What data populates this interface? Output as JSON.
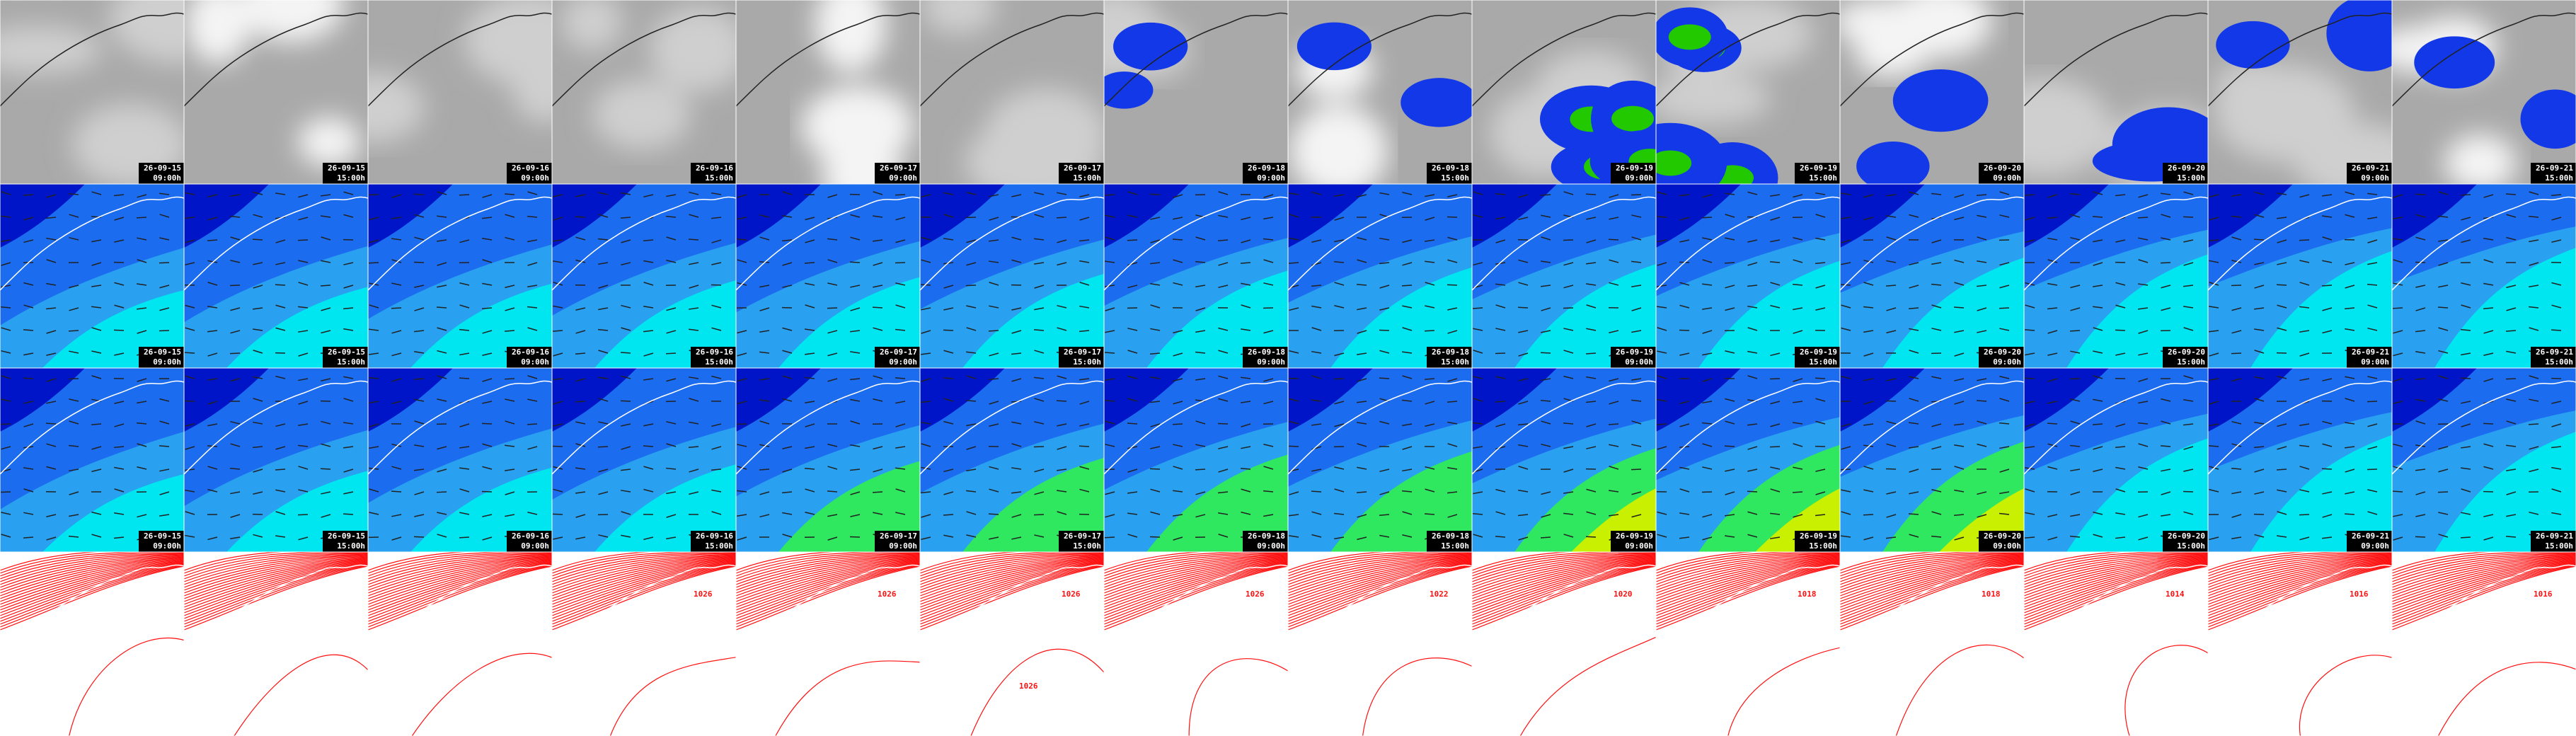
{
  "rows": [
    {
      "tiles": [
        {
          "date": "26-09-15",
          "time": "09:00h"
        },
        {
          "date": "26-09-15",
          "time": "15:00h"
        },
        {
          "date": "26-09-16",
          "time": "09:00h"
        },
        {
          "date": "26-09-16",
          "time": "15:00h"
        },
        {
          "date": "26-09-17",
          "time": "09:00h"
        },
        {
          "date": "26-09-17",
          "time": "15:00h"
        },
        {
          "date": "26-09-18",
          "time": "09:00h"
        },
        {
          "date": "26-09-18",
          "time": "15:00h"
        },
        {
          "date": "26-09-19",
          "time": "09:00h"
        },
        {
          "date": "26-09-19",
          "time": "15:00h"
        },
        {
          "date": "26-09-20",
          "time": "09:00h"
        },
        {
          "date": "26-09-20",
          "time": "15:00h"
        },
        {
          "date": "26-09-21",
          "time": "09:00h"
        },
        {
          "date": "26-09-21",
          "time": "15:00h"
        }
      ]
    },
    {
      "tiles": [
        {
          "date": "26-09-15",
          "time": "09:00h"
        },
        {
          "date": "26-09-15",
          "time": "15:00h"
        },
        {
          "date": "26-09-16",
          "time": "09:00h"
        },
        {
          "date": "26-09-16",
          "time": "15:00h"
        },
        {
          "date": "26-09-17",
          "time": "09:00h"
        },
        {
          "date": "26-09-17",
          "time": "15:00h"
        },
        {
          "date": "26-09-18",
          "time": "09:00h"
        },
        {
          "date": "26-09-18",
          "time": "15:00h"
        },
        {
          "date": "26-09-19",
          "time": "09:00h"
        },
        {
          "date": "26-09-19",
          "time": "15:00h"
        },
        {
          "date": "26-09-20",
          "time": "09:00h"
        },
        {
          "date": "26-09-20",
          "time": "15:00h"
        },
        {
          "date": "26-09-21",
          "time": "09:00h"
        },
        {
          "date": "26-09-21",
          "time": "15:00h"
        }
      ]
    },
    {
      "tiles": [
        {
          "date": "26-09-15",
          "time": "09:00h"
        },
        {
          "date": "26-09-15",
          "time": "15:00h"
        },
        {
          "date": "26-09-16",
          "time": "09:00h"
        },
        {
          "date": "26-09-16",
          "time": "15:00h"
        },
        {
          "date": "26-09-17",
          "time": "09:00h"
        },
        {
          "date": "26-09-17",
          "time": "15:00h"
        },
        {
          "date": "26-09-18",
          "time": "09:00h"
        },
        {
          "date": "26-09-18",
          "time": "15:00h"
        },
        {
          "date": "26-09-19",
          "time": "09:00h"
        },
        {
          "date": "26-09-19",
          "time": "15:00h"
        },
        {
          "date": "26-09-20",
          "time": "09:00h"
        },
        {
          "date": "26-09-20",
          "time": "15:00h"
        },
        {
          "date": "26-09-21",
          "time": "09:00h"
        },
        {
          "date": "26-09-21",
          "time": "15:00h"
        }
      ]
    }
  ],
  "pressure_labels": [
    [],
    [],
    [],
    [
      "1026"
    ],
    [
      "1026"
    ],
    [
      "1026",
      "1026"
    ],
    [
      "1026"
    ],
    [
      "1022"
    ],
    [
      "1020"
    ],
    [
      "1018"
    ],
    [
      "1018"
    ],
    [
      "1014"
    ],
    [
      "1016"
    ],
    [
      "1016"
    ]
  ]
}
